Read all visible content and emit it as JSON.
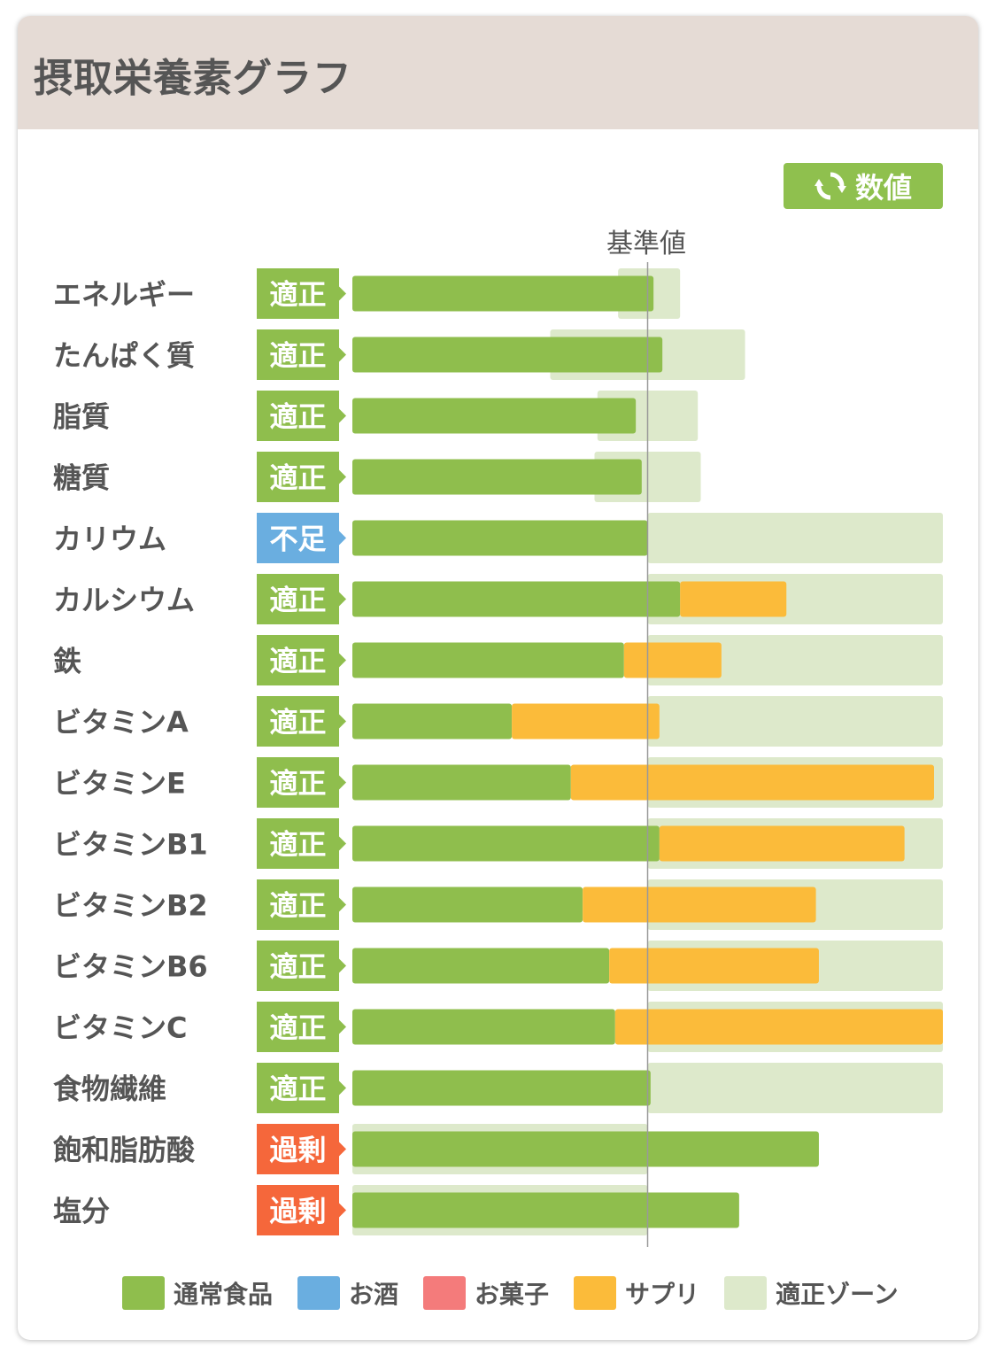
{
  "header": {
    "title": "摂取栄養素グラフ"
  },
  "toggle": {
    "label": "数値",
    "icon": "refresh-icon"
  },
  "colors": {
    "food": "#8fbe4d",
    "alcohol": "#6aaee0",
    "snack": "#f47b7b",
    "supplement": "#fbbb3a",
    "zone": "#dde9cb",
    "status_ok": "#8fbe4d",
    "status_low": "#6aaee0",
    "status_high": "#f5673b"
  },
  "chart_data": {
    "type": "bar",
    "orientation": "horizontal",
    "stacked": true,
    "reference_label": "基準値",
    "reference_value": 100,
    "xlim": [
      0,
      200
    ],
    "grid": false,
    "legend_position": "bottom",
    "categories": [
      "エネルギー",
      "たんぱく質",
      "脂質",
      "糖質",
      "カリウム",
      "カルシウム",
      "鉄",
      "ビタミンA",
      "ビタミンE",
      "ビタミンB1",
      "ビタミンB2",
      "ビタミンB6",
      "ビタミンC",
      "食物繊維",
      "飽和脂肪酸",
      "塩分"
    ],
    "status": [
      "適正",
      "適正",
      "適正",
      "適正",
      "不足",
      "適正",
      "適正",
      "適正",
      "適正",
      "適正",
      "適正",
      "適正",
      "適正",
      "適正",
      "過剰",
      "過剰"
    ],
    "status_type": [
      "ok",
      "ok",
      "ok",
      "ok",
      "low",
      "ok",
      "ok",
      "ok",
      "ok",
      "ok",
      "ok",
      "ok",
      "ok",
      "ok",
      "high",
      "high"
    ],
    "series": [
      {
        "name": "通常食品",
        "key": "food",
        "values": [
          102,
          105,
          96,
          98,
          100,
          111,
          92,
          54,
          74,
          104,
          78,
          87,
          89,
          101,
          158,
          131
        ]
      },
      {
        "name": "お酒",
        "key": "alcohol",
        "values": [
          0,
          0,
          0,
          0,
          0,
          0,
          0,
          0,
          0,
          0,
          0,
          0,
          0,
          0,
          0,
          0
        ]
      },
      {
        "name": "お菓子",
        "key": "snack",
        "values": [
          0,
          0,
          0,
          0,
          0,
          0,
          0,
          0,
          0,
          0,
          0,
          0,
          0,
          0,
          0,
          0
        ]
      },
      {
        "name": "サプリ",
        "key": "supplement",
        "values": [
          0,
          0,
          0,
          0,
          0,
          36,
          33,
          50,
          123,
          83,
          79,
          71,
          111,
          0,
          0,
          0
        ]
      }
    ],
    "zones": [
      [
        90,
        111
      ],
      [
        67,
        133
      ],
      [
        83,
        117
      ],
      [
        82,
        118
      ],
      [
        100,
        200
      ],
      [
        100,
        200
      ],
      [
        100,
        200
      ],
      [
        100,
        200
      ],
      [
        100,
        200
      ],
      [
        100,
        200
      ],
      [
        100,
        200
      ],
      [
        100,
        200
      ],
      [
        100,
        200
      ],
      [
        100,
        200
      ],
      [
        0,
        100
      ],
      [
        0,
        100
      ]
    ]
  },
  "legend": [
    {
      "label": "通常食品",
      "key": "food"
    },
    {
      "label": "お酒",
      "key": "alcohol"
    },
    {
      "label": "お菓子",
      "key": "snack"
    },
    {
      "label": "サプリ",
      "key": "supplement"
    },
    {
      "label": "適正ゾーン",
      "key": "zone"
    }
  ]
}
